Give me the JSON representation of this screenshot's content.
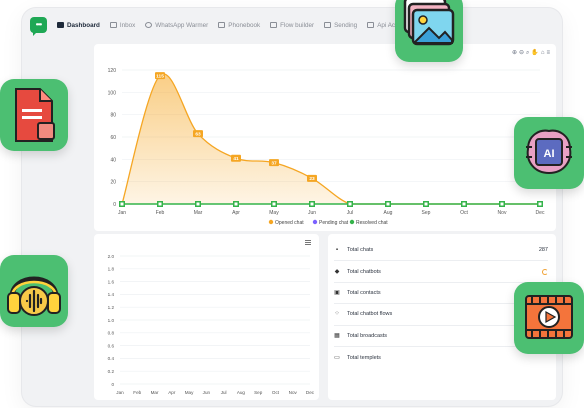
{
  "nav": {
    "items": [
      {
        "label": "Dashboard",
        "active": true
      },
      {
        "label": "Inbox"
      },
      {
        "label": "WhatsApp Warmer"
      },
      {
        "label": "Phonebook"
      },
      {
        "label": "Flow builder"
      },
      {
        "label": "Sending"
      },
      {
        "label": "Api Ac"
      }
    ]
  },
  "main_chart": {
    "toolbar_icons": [
      "zoom-in-icon",
      "zoom-out-icon",
      "zoom-select-icon",
      "pan-icon",
      "home-icon",
      "menu-icon"
    ],
    "legend": [
      "Opened chat",
      "Pending chat",
      "Resolved chat"
    ]
  },
  "chart_data": [
    {
      "type": "area",
      "categories": [
        "Jan",
        "Feb",
        "Mar",
        "Apr",
        "May",
        "Jun",
        "Jul",
        "Aug",
        "Sep",
        "Oct",
        "Nov",
        "Dec"
      ],
      "ylim": [
        0,
        120
      ],
      "yticks": [
        0,
        20,
        40,
        60,
        80,
        100,
        120
      ],
      "series": [
        {
          "name": "Opened chat",
          "color": "#f5a623",
          "values": [
            0,
            115,
            63,
            41,
            37,
            23,
            0,
            0,
            0,
            0,
            0,
            0
          ],
          "labels": true
        },
        {
          "name": "Pending chat",
          "color": "#7b61ff",
          "values": [
            0,
            0,
            0,
            0,
            0,
            0,
            0,
            0,
            0,
            0,
            0,
            0
          ]
        },
        {
          "name": "Resolved chat",
          "color": "#34b34a",
          "values": [
            0,
            0,
            0,
            0,
            0,
            0,
            0,
            0,
            0,
            0,
            0,
            0
          ]
        }
      ],
      "legend": "bottom",
      "grid": true
    },
    {
      "type": "line",
      "categories": [
        "Jan",
        "Feb",
        "Mar",
        "Apr",
        "May",
        "Jun",
        "Jul",
        "Aug",
        "Sep",
        "Oct",
        "Nov",
        "Dec"
      ],
      "ylim": [
        0,
        2.0
      ],
      "yticks": [
        "0",
        "0.2",
        "0.4",
        "0.6",
        "0.8",
        "1.0",
        "1.2",
        "1.4",
        "1.6",
        "1.8",
        "2.0"
      ],
      "series": [],
      "grid": true
    }
  ],
  "stats": [
    {
      "icon": "chat-icon",
      "label": "Total chats",
      "value": "287"
    },
    {
      "icon": "robot-icon",
      "label": "Total chatbots",
      "value": "",
      "loading": true
    },
    {
      "icon": "contacts-icon",
      "label": "Total contacts",
      "value": ""
    },
    {
      "icon": "flow-icon",
      "label": "Total chatbot flows",
      "value": ""
    },
    {
      "icon": "broadcast-icon",
      "label": "Total broadcasts",
      "value": ""
    },
    {
      "icon": "template-icon",
      "label": "Total templets",
      "value": ""
    }
  ],
  "floating_icons": [
    "gallery-app-icon",
    "ai-chip-app-icon",
    "document-app-icon",
    "headphones-app-icon",
    "video-play-app-icon"
  ],
  "colors": {
    "green": "#4cbf72",
    "orange": "#f5a623",
    "violet": "#7b61ff"
  }
}
